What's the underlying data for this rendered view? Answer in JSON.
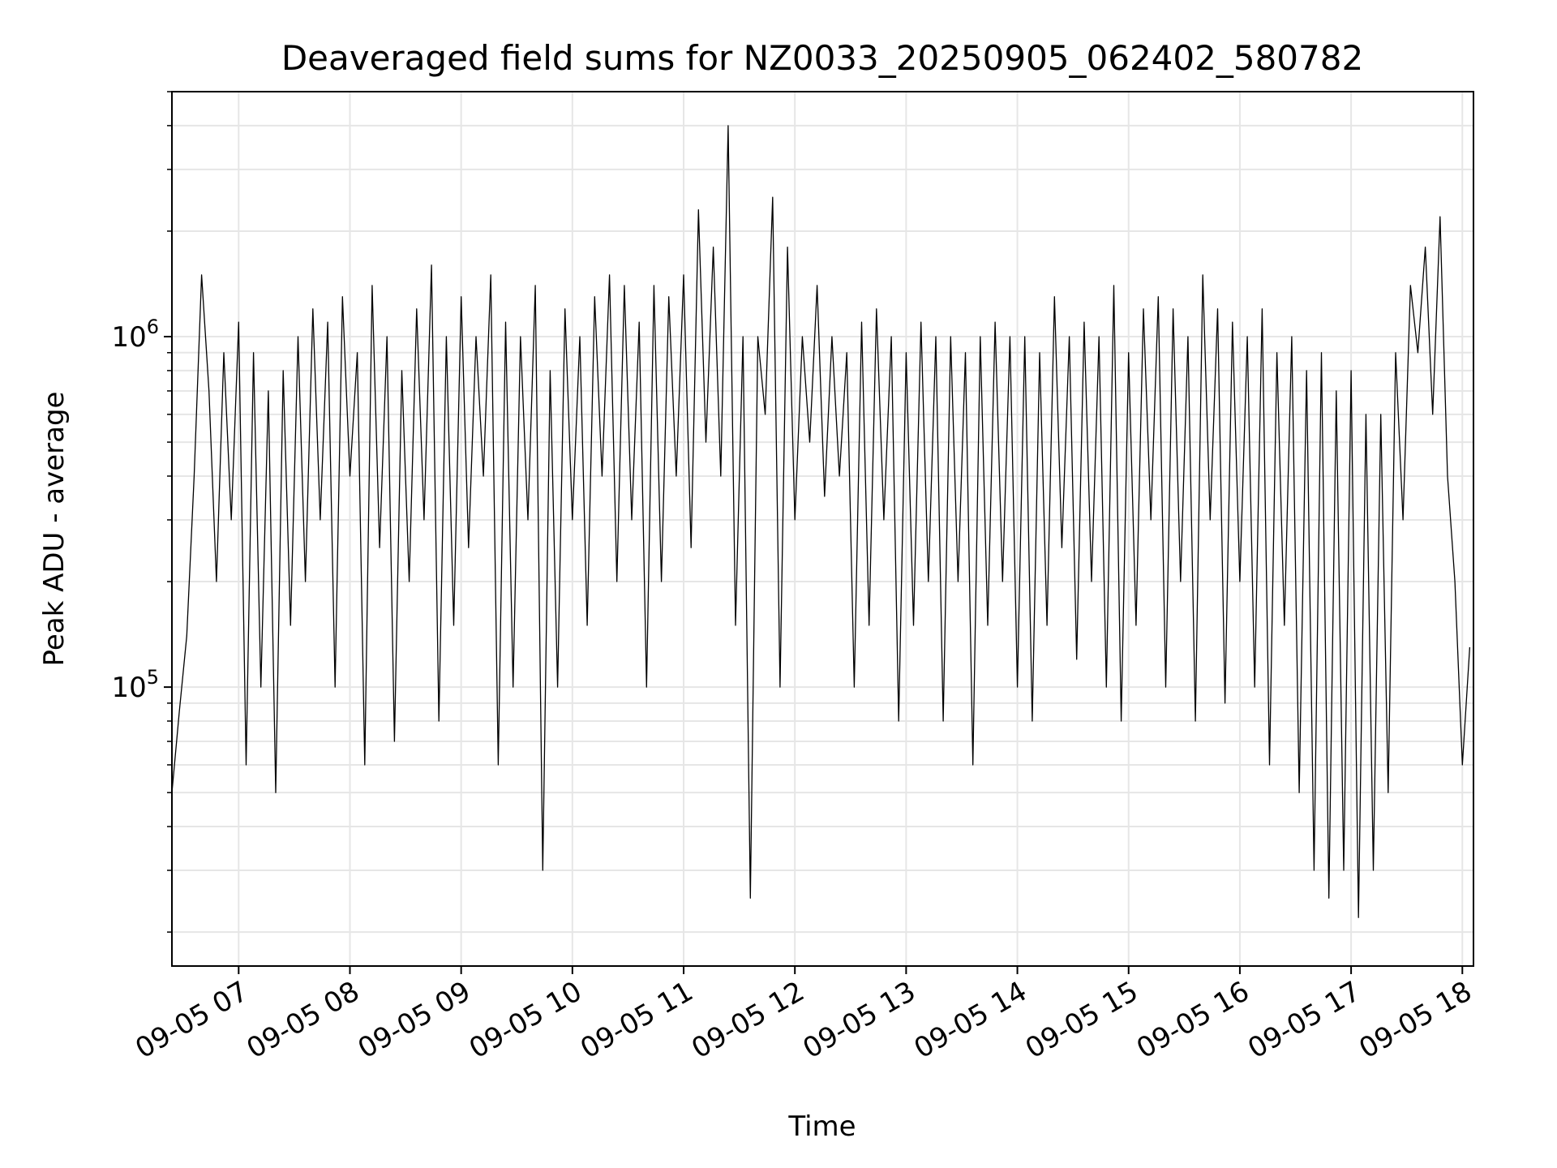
{
  "chart_data": {
    "type": "line",
    "title": "Deaveraged field sums for NZ0033_20250905_062402_580782",
    "xlabel": "Time",
    "ylabel": "Peak ADU - average",
    "yscale": "log",
    "ylim": [
      16000,
      5000000
    ],
    "xlim": [
      "09-05 06:24",
      "09-05 18:06"
    ],
    "x_ticks": [
      "09-05 07",
      "09-05 08",
      "09-05 09",
      "09-05 10",
      "09-05 11",
      "09-05 12",
      "09-05 13",
      "09-05 14",
      "09-05 15",
      "09-05 16",
      "09-05 17",
      "09-05 18"
    ],
    "y_ticks": [
      {
        "base": "10",
        "exp": "5",
        "value": 100000
      },
      {
        "base": "10",
        "exp": "6",
        "value": 1000000
      }
    ],
    "grid": true,
    "line_color": "#000000",
    "grid_color": "#e6e6e6",
    "series": [
      {
        "x": [
          "09-05 06:24",
          "09-05 06:28",
          "09-05 06:32",
          "09-05 06:36",
          "09-05 06:40",
          "09-05 06:44",
          "09-05 06:48",
          "09-05 06:52",
          "09-05 06:56",
          "09-05 07:00",
          "09-05 07:04",
          "09-05 07:08",
          "09-05 07:12",
          "09-05 07:16",
          "09-05 07:20",
          "09-05 07:24",
          "09-05 07:28",
          "09-05 07:32",
          "09-05 07:36",
          "09-05 07:40",
          "09-05 07:44",
          "09-05 07:48",
          "09-05 07:52",
          "09-05 07:56",
          "09-05 08:00",
          "09-05 08:04",
          "09-05 08:08",
          "09-05 08:12",
          "09-05 08:16",
          "09-05 08:20",
          "09-05 08:24",
          "09-05 08:28",
          "09-05 08:32",
          "09-05 08:36",
          "09-05 08:40",
          "09-05 08:44",
          "09-05 08:48",
          "09-05 08:52",
          "09-05 08:56",
          "09-05 09:00",
          "09-05 09:04",
          "09-05 09:08",
          "09-05 09:12",
          "09-05 09:16",
          "09-05 09:20",
          "09-05 09:24",
          "09-05 09:28",
          "09-05 09:32",
          "09-05 09:36",
          "09-05 09:40",
          "09-05 09:44",
          "09-05 09:48",
          "09-05 09:52",
          "09-05 09:56",
          "09-05 10:00",
          "09-05 10:04",
          "09-05 10:08",
          "09-05 10:12",
          "09-05 10:16",
          "09-05 10:20",
          "09-05 10:24",
          "09-05 10:28",
          "09-05 10:32",
          "09-05 10:36",
          "09-05 10:40",
          "09-05 10:44",
          "09-05 10:48",
          "09-05 10:52",
          "09-05 10:56",
          "09-05 11:00",
          "09-05 11:04",
          "09-05 11:08",
          "09-05 11:12",
          "09-05 11:16",
          "09-05 11:20",
          "09-05 11:24",
          "09-05 11:28",
          "09-05 11:32",
          "09-05 11:36",
          "09-05 11:40",
          "09-05 11:44",
          "09-05 11:48",
          "09-05 11:52",
          "09-05 11:56",
          "09-05 12:00",
          "09-05 12:04",
          "09-05 12:08",
          "09-05 12:12",
          "09-05 12:16",
          "09-05 12:20",
          "09-05 12:24",
          "09-05 12:28",
          "09-05 12:32",
          "09-05 12:36",
          "09-05 12:40",
          "09-05 12:44",
          "09-05 12:48",
          "09-05 12:52",
          "09-05 12:56",
          "09-05 13:00",
          "09-05 13:04",
          "09-05 13:08",
          "09-05 13:12",
          "09-05 13:16",
          "09-05 13:20",
          "09-05 13:24",
          "09-05 13:28",
          "09-05 13:32",
          "09-05 13:36",
          "09-05 13:40",
          "09-05 13:44",
          "09-05 13:48",
          "09-05 13:52",
          "09-05 13:56",
          "09-05 14:00",
          "09-05 14:04",
          "09-05 14:08",
          "09-05 14:12",
          "09-05 14:16",
          "09-05 14:20",
          "09-05 14:24",
          "09-05 14:28",
          "09-05 14:32",
          "09-05 14:36",
          "09-05 14:40",
          "09-05 14:44",
          "09-05 14:48",
          "09-05 14:52",
          "09-05 14:56",
          "09-05 15:00",
          "09-05 15:04",
          "09-05 15:08",
          "09-05 15:12",
          "09-05 15:16",
          "09-05 15:20",
          "09-05 15:24",
          "09-05 15:28",
          "09-05 15:32",
          "09-05 15:36",
          "09-05 15:40",
          "09-05 15:44",
          "09-05 15:48",
          "09-05 15:52",
          "09-05 15:56",
          "09-05 16:00",
          "09-05 16:04",
          "09-05 16:08",
          "09-05 16:12",
          "09-05 16:16",
          "09-05 16:20",
          "09-05 16:24",
          "09-05 16:28",
          "09-05 16:32",
          "09-05 16:36",
          "09-05 16:40",
          "09-05 16:44",
          "09-05 16:48",
          "09-05 16:52",
          "09-05 16:56",
          "09-05 17:00",
          "09-05 17:04",
          "09-05 17:08",
          "09-05 17:12",
          "09-05 17:16",
          "09-05 17:20",
          "09-05 17:24",
          "09-05 17:28",
          "09-05 17:32",
          "09-05 17:36",
          "09-05 17:40",
          "09-05 17:44",
          "09-05 17:48",
          "09-05 17:52",
          "09-05 17:56",
          "09-05 18:00",
          "09-05 18:04"
        ],
        "y": [
          50000,
          85000,
          140000,
          400000,
          1500000,
          700000,
          200000,
          900000,
          300000,
          1100000,
          60000,
          900000,
          100000,
          700000,
          50000,
          800000,
          150000,
          1000000,
          200000,
          1200000,
          300000,
          1100000,
          100000,
          1300000,
          400000,
          900000,
          60000,
          1400000,
          250000,
          1000000,
          70000,
          800000,
          200000,
          1200000,
          300000,
          1600000,
          80000,
          1000000,
          150000,
          1300000,
          250000,
          1000000,
          400000,
          1500000,
          60000,
          1100000,
          100000,
          1000000,
          300000,
          1400000,
          30000,
          800000,
          100000,
          1200000,
          300000,
          1000000,
          150000,
          1300000,
          400000,
          1500000,
          200000,
          1400000,
          300000,
          1100000,
          100000,
          1400000,
          200000,
          1300000,
          400000,
          1500000,
          250000,
          2300000,
          500000,
          1800000,
          400000,
          4000000,
          150000,
          1000000,
          25000,
          1000000,
          600000,
          2500000,
          100000,
          1800000,
          300000,
          1000000,
          500000,
          1400000,
          350000,
          1000000,
          400000,
          900000,
          100000,
          1100000,
          150000,
          1200000,
          300000,
          1000000,
          80000,
          900000,
          150000,
          1100000,
          200000,
          1000000,
          80000,
          1000000,
          200000,
          900000,
          60000,
          1000000,
          150000,
          1100000,
          200000,
          1000000,
          100000,
          1000000,
          80000,
          900000,
          150000,
          1300000,
          250000,
          1000000,
          120000,
          1100000,
          200000,
          1000000,
          100000,
          1400000,
          80000,
          900000,
          150000,
          1200000,
          300000,
          1300000,
          100000,
          1200000,
          200000,
          1000000,
          80000,
          1500000,
          300000,
          1200000,
          90000,
          1100000,
          200000,
          1000000,
          100000,
          1200000,
          60000,
          900000,
          150000,
          1000000,
          50000,
          800000,
          30000,
          900000,
          25000,
          700000,
          30000,
          800000,
          22000,
          600000,
          30000,
          600000,
          50000,
          900000,
          300000,
          1400000,
          900000,
          1800000,
          600000,
          2200000,
          400000,
          200000,
          60000,
          130000
        ]
      }
    ]
  }
}
